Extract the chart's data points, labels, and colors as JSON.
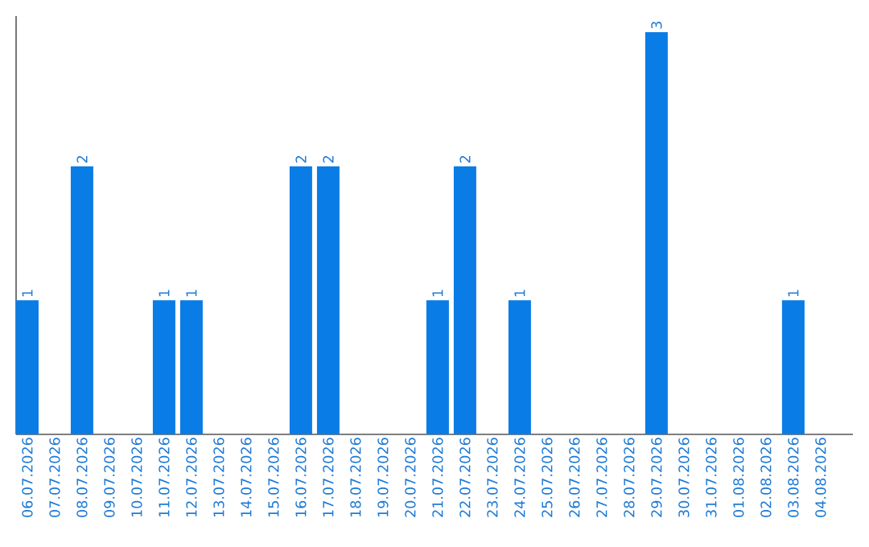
{
  "chart_data": {
    "type": "bar",
    "categories": [
      "06.07.2026",
      "07.07.2026",
      "08.07.2026",
      "09.07.2026",
      "10.07.2026",
      "11.07.2026",
      "12.07.2026",
      "13.07.2026",
      "14.07.2026",
      "15.07.2026",
      "16.07.2026",
      "17.07.2026",
      "18.07.2026",
      "19.07.2026",
      "20.07.2026",
      "21.07.2026",
      "22.07.2026",
      "23.07.2026",
      "24.07.2026",
      "25.07.2026",
      "26.07.2026",
      "27.07.2026",
      "28.07.2026",
      "29.07.2026",
      "30.07.2026",
      "31.07.2026",
      "01.08.2026",
      "02.08.2026",
      "03.08.2026",
      "04.08.2026"
    ],
    "values": [
      1,
      0,
      2,
      0,
      0,
      1,
      1,
      0,
      0,
      0,
      2,
      2,
      0,
      0,
      0,
      1,
      2,
      0,
      1,
      0,
      0,
      0,
      0,
      3,
      0,
      0,
      0,
      0,
      1,
      0
    ],
    "value_labels": [
      "1",
      null,
      "2",
      null,
      null,
      "1",
      "1",
      null,
      null,
      null,
      "2",
      "2",
      null,
      null,
      null,
      "1",
      "2",
      null,
      "1",
      null,
      null,
      null,
      null,
      "3",
      null,
      null,
      null,
      null,
      "1",
      null
    ],
    "color": "#0a7ce6",
    "ylim": [
      0,
      3.12
    ],
    "tick_labels": "x",
    "grid": false
  }
}
